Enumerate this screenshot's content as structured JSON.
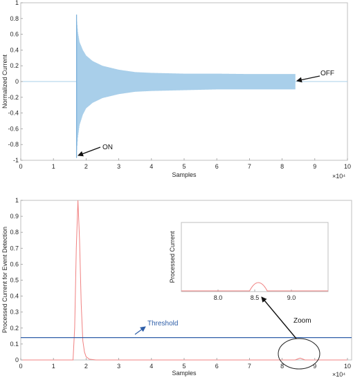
{
  "chart_data": [
    {
      "type": "line",
      "title": "",
      "xlabel": "Samples",
      "ylabel": "Normalized Current",
      "x_exponent": "×10⁴",
      "xlim": [
        0,
        10
      ],
      "ylim": [
        -1,
        1
      ],
      "xticks": [
        "0",
        "1",
        "2",
        "3",
        "4",
        "5",
        "6",
        "7",
        "8",
        "9",
        "10"
      ],
      "yticks": [
        "-1",
        "-0.8",
        "-0.6",
        "-0.4",
        "-0.2",
        "0",
        "0.2",
        "0.4",
        "0.6",
        "0.8",
        "1"
      ],
      "series": [
        {
          "color": "#a9cfea",
          "envelope_x": [
            1.7,
            1.75,
            1.8,
            1.9,
            2.0,
            2.2,
            2.5,
            3.0,
            3.5,
            4.0,
            5.0,
            6.0,
            7.0,
            8.0,
            8.4
          ],
          "envelope_upper": [
            0.85,
            0.62,
            0.5,
            0.4,
            0.33,
            0.26,
            0.2,
            0.15,
            0.12,
            0.11,
            0.1,
            0.1,
            0.095,
            0.095,
            0.095
          ],
          "envelope_lower": [
            -0.97,
            -0.7,
            -0.55,
            -0.42,
            -0.34,
            -0.27,
            -0.21,
            -0.16,
            -0.13,
            -0.12,
            -0.11,
            -0.1,
            -0.1,
            -0.1,
            -0.1
          ]
        }
      ],
      "annotations": [
        {
          "text": "ON",
          "at": [
            1.72,
            -0.97
          ]
        },
        {
          "text": "OFF",
          "at": [
            8.42,
            0.02
          ]
        }
      ]
    },
    {
      "type": "line",
      "title": "",
      "xlabel": "Samples",
      "ylabel": "Processed Current for Event Detection",
      "x_exponent": "×10⁴",
      "xlim": [
        0,
        10
      ],
      "ylim": [
        0,
        1
      ],
      "xticks": [
        "0",
        "1",
        "2",
        "3",
        "4",
        "5",
        "6",
        "7",
        "8",
        "9",
        "10"
      ],
      "yticks": [
        "0",
        "0.1",
        "0.2",
        "0.3",
        "0.4",
        "0.5",
        "0.6",
        "0.7",
        "0.8",
        "0.9",
        "1"
      ],
      "series": [
        {
          "color": "#f08080",
          "x": [
            0,
            1.6,
            1.65,
            1.7,
            1.75,
            1.8,
            1.85,
            1.9,
            1.95,
            2.0,
            2.1,
            2.3,
            3.0,
            8.4,
            8.5,
            8.55,
            8.6,
            8.7,
            10
          ],
          "y": [
            0,
            0,
            0.2,
            0.7,
            1.0,
            0.75,
            0.35,
            0.12,
            0.05,
            0.02,
            0.005,
            0.0,
            0.0,
            0.0,
            0.008,
            0.012,
            0.008,
            0.0,
            0.0
          ]
        }
      ],
      "threshold": {
        "label": "Threshold",
        "value": 0.14,
        "color": "#2e5ea8"
      },
      "inset": {
        "ylabel": "Processed Current",
        "xlim": [
          7.5,
          9.5
        ],
        "xticks": [
          "8.0",
          "8.5",
          "9.0"
        ],
        "xtick_values": [
          8.0,
          8.5,
          9.0
        ],
        "bump_center": 8.55,
        "bump_width": 0.12
      },
      "zoom_label": "Zoom"
    }
  ]
}
